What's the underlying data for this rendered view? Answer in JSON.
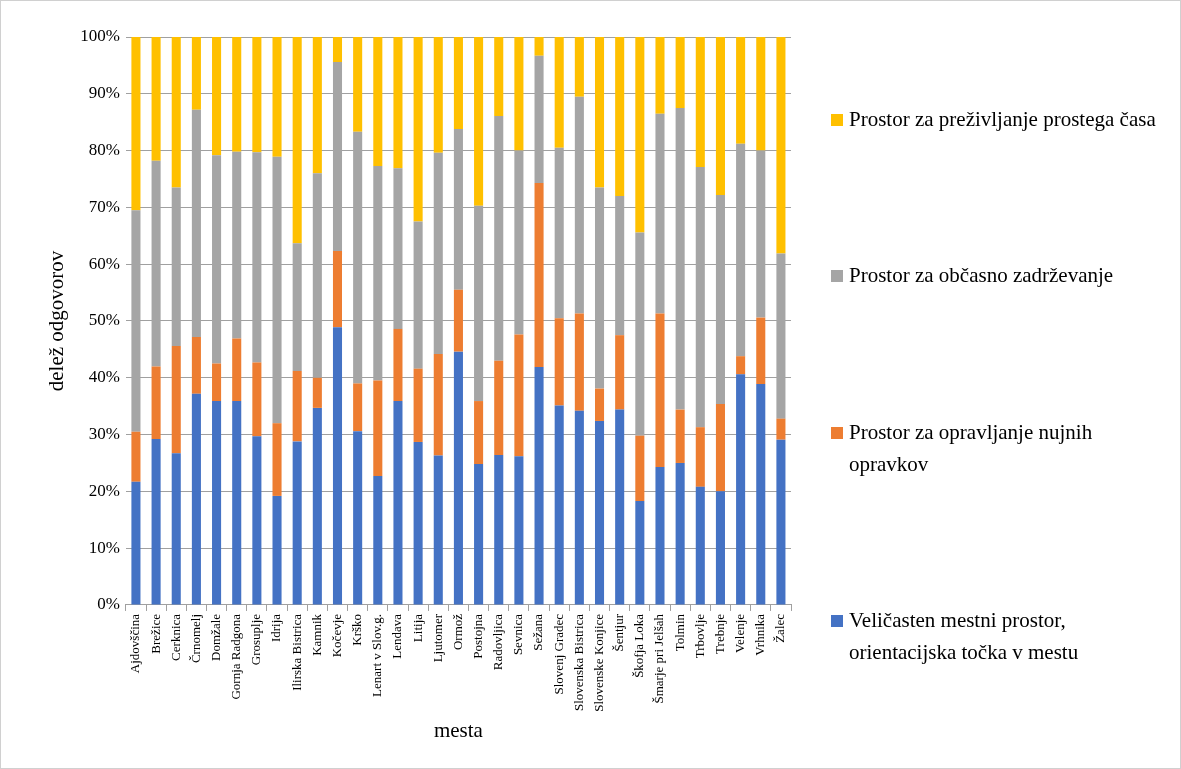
{
  "chart_data": {
    "type": "bar",
    "stacked": true,
    "xlabel": "mesta",
    "ylabel": "delež odgovorov",
    "categories": [
      "Ajdovščina",
      "Brežice",
      "Cerknica",
      "Črnomelj",
      "Domžale",
      "Gornja Radgona",
      "Grosuplje",
      "Idrija",
      "Ilirska Bistrica",
      "Kamnik",
      "Kočevje",
      "Krško",
      "Lenart v Slov.g.",
      "Lendava",
      "Litija",
      "Ljutomer",
      "Ormož",
      "Postojna",
      "Radovljica",
      "Sevnica",
      "Sežana",
      "Slovenj Gradec",
      "Slovenska Bistrica",
      "Slovenske Konjice",
      "Šentjur",
      "Škofja Loka",
      "Šmarje pri Jelšah",
      "Tolmin",
      "Trbovlje",
      "Trebnje",
      "Velenje",
      "Vrhnika",
      "Žalec"
    ],
    "series": [
      {
        "name": "Veličasten mestni prostor, orientacijska točka v mestu",
        "color": "#4472c4",
        "values": [
          21.7,
          29.2,
          26.7,
          37.2,
          35.9,
          35.9,
          29.7,
          19.2,
          28.8,
          34.7,
          48.9,
          30.6,
          22.7,
          35.9,
          28.7,
          26.3,
          44.6,
          24.8,
          26.4,
          26.2,
          41.9,
          35.1,
          34.2,
          32.4,
          34.4,
          18.3,
          24.3,
          25.0,
          20.8,
          20.0,
          40.6,
          38.9,
          29.1
        ]
      },
      {
        "name": "Prostor za opravljanje nujnih opravkov",
        "color": "#ed7d31",
        "values": [
          8.8,
          12.8,
          18.9,
          10.0,
          6.6,
          11.0,
          13.0,
          12.8,
          12.4,
          5.3,
          13.4,
          8.4,
          16.8,
          12.7,
          12.9,
          17.9,
          10.9,
          11.1,
          16.6,
          21.4,
          32.4,
          15.4,
          17.1,
          5.7,
          13.1,
          11.5,
          27.0,
          9.4,
          10.5,
          15.4,
          3.2,
          11.7,
          3.7
        ]
      },
      {
        "name": "Prostor za občasno zadrževanje",
        "color": "#a5a5a5",
        "values": [
          39.0,
          36.2,
          27.9,
          40.0,
          36.7,
          32.9,
          37.0,
          46.9,
          22.5,
          36.0,
          33.3,
          44.3,
          37.8,
          28.3,
          25.9,
          35.4,
          28.3,
          34.4,
          43.1,
          32.4,
          22.4,
          30.0,
          38.2,
          35.4,
          24.5,
          35.8,
          35.2,
          53.1,
          45.8,
          36.8,
          37.4,
          29.4,
          29.1
        ]
      },
      {
        "name": "Prostor za preživljanje prostega časa",
        "color": "#ffc000",
        "values": [
          30.5,
          21.8,
          26.5,
          12.8,
          20.8,
          20.2,
          20.3,
          21.1,
          36.3,
          24.0,
          4.4,
          16.7,
          22.7,
          23.1,
          32.5,
          20.4,
          16.2,
          29.7,
          13.9,
          20.0,
          3.3,
          19.5,
          10.5,
          26.5,
          28.0,
          34.4,
          13.5,
          12.5,
          22.9,
          27.8,
          18.8,
          20.0,
          38.1
        ]
      }
    ],
    "ylim": [
      0,
      100
    ],
    "yticks": [
      {
        "value": 0,
        "label": "0%"
      },
      {
        "value": 10,
        "label": "10%"
      },
      {
        "value": 20,
        "label": "20%"
      },
      {
        "value": 30,
        "label": "30%"
      },
      {
        "value": 40,
        "label": "40%"
      },
      {
        "value": 50,
        "label": "50%"
      },
      {
        "value": 60,
        "label": "60%"
      },
      {
        "value": 70,
        "label": "70%"
      },
      {
        "value": 80,
        "label": "80%"
      },
      {
        "value": 90,
        "label": "90%"
      },
      {
        "value": 100,
        "label": "100%"
      }
    ],
    "grid": "y",
    "legend": "right"
  }
}
